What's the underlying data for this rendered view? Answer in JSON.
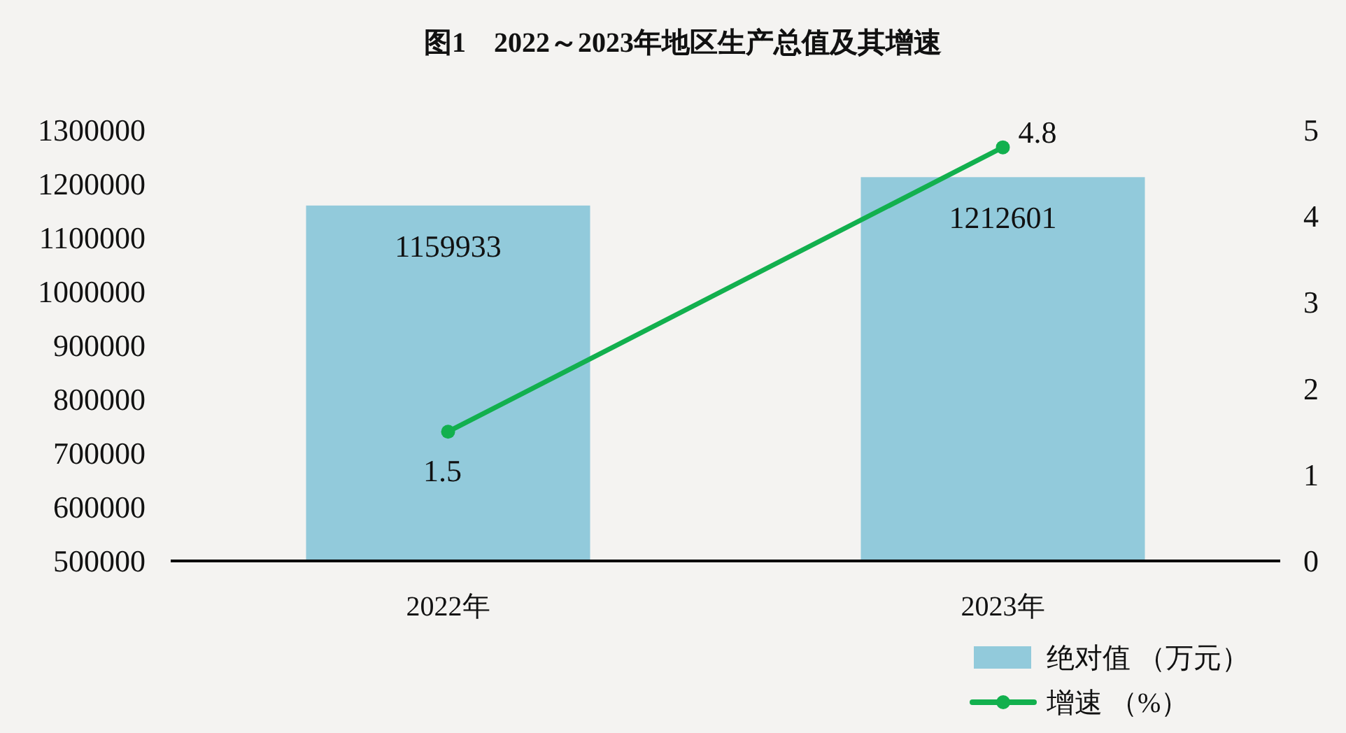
{
  "chart_data": {
    "type": "bar",
    "title": "图1　2022～2023年地区生产总值及其增速",
    "categories": [
      "2022年",
      "2023年"
    ],
    "series": [
      {
        "name": "绝对值 （万元）",
        "color": "#92cadb",
        "values": [
          1159933,
          1212601
        ]
      },
      {
        "name": "增速 （%）",
        "type": "line",
        "axis": "y2",
        "color": "#12b04e",
        "values": [
          1.5,
          4.8
        ]
      }
    ],
    "ylim": [
      500000,
      1300000
    ],
    "yticks": [
      500000,
      600000,
      700000,
      800000,
      900000,
      1000000,
      1100000,
      1200000,
      1300000
    ],
    "y2lim": [
      0,
      5
    ],
    "y2ticks": [
      0,
      1,
      2,
      3,
      4,
      5
    ],
    "data_labels": true,
    "legend": "bottom right",
    "marker": "circle",
    "grid": false
  }
}
